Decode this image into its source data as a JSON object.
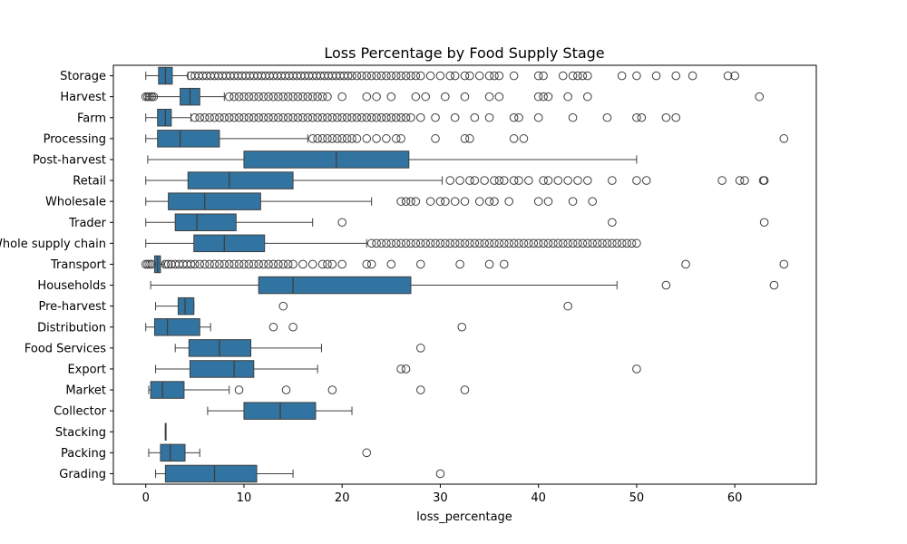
{
  "chart_data": {
    "type": "boxplot",
    "orientation": "horizontal",
    "title": "Loss Percentage by Food Supply Stage",
    "xlabel": "loss_percentage",
    "ylabel": "",
    "xlim": [
      -3.3,
      68.3
    ],
    "xticks": [
      "0",
      "10",
      "20",
      "30",
      "40",
      "50",
      "60"
    ],
    "xtick_values": [
      0,
      10,
      20,
      30,
      40,
      50,
      60
    ],
    "colors": {
      "box": "#3274a1",
      "line": "#3f3f3f",
      "outlier": "#3f3f3f"
    },
    "categories": [
      "Storage",
      "Harvest",
      "Farm",
      "Processing",
      "Post-harvest",
      "Retail",
      "Wholesale",
      "Trader",
      "Whole supply chain",
      "Transport",
      "Households",
      "Pre-harvest",
      "Distribution",
      "Food Services",
      "Export",
      "Market",
      "Collector",
      "Stacking",
      "Packing",
      "Grading"
    ],
    "series": [
      {
        "name": "Storage",
        "whislo": 0.0,
        "q1": 1.3,
        "med": 2.0,
        "q3": 2.7,
        "whishi": 4.3,
        "outliers": [
          4.6,
          5.0,
          5.4,
          5.8,
          6.2,
          6.6,
          7.0,
          7.4,
          7.8,
          8.2,
          8.6,
          9.0,
          9.4,
          9.8,
          10.2,
          10.6,
          11.0,
          11.4,
          11.8,
          12.2,
          12.6,
          13.0,
          13.4,
          13.8,
          14.2,
          14.6,
          15.0,
          15.4,
          15.8,
          16.2,
          16.6,
          17.0,
          17.4,
          17.8,
          18.2,
          18.6,
          19.0,
          19.4,
          19.8,
          20.2,
          20.6,
          21.0,
          21.5,
          22.0,
          22.5,
          23.0,
          23.5,
          24.0,
          24.5,
          25.0,
          25.5,
          26.0,
          26.5,
          27.0,
          27.5,
          28.0,
          29.0,
          30.0,
          31.0,
          31.5,
          32.5,
          33.0,
          34.0,
          35.0,
          35.5,
          36.0,
          37.5,
          40.0,
          40.5,
          42.5,
          43.5,
          44.0,
          44.5,
          45.0,
          48.5,
          50.0,
          52.0,
          54.0,
          55.7,
          59.3,
          60.0
        ]
      },
      {
        "name": "Harvest",
        "whislo": 0.0,
        "q1": 3.5,
        "med": 4.5,
        "q3": 5.5,
        "whishi": 8.0,
        "outliers": [
          0.0,
          0.2,
          0.4,
          0.6,
          0.8,
          8.5,
          9.0,
          9.5,
          10.0,
          10.5,
          11.0,
          11.5,
          12.0,
          12.5,
          13.0,
          13.5,
          14.0,
          14.5,
          15.0,
          15.5,
          16.0,
          16.5,
          17.0,
          17.5,
          18.0,
          18.5,
          20.0,
          22.5,
          23.5,
          25.0,
          27.5,
          28.5,
          30.5,
          32.5,
          35.0,
          36.0,
          40.0,
          40.5,
          41.0,
          43.0,
          45.0,
          62.5
        ]
      },
      {
        "name": "Farm",
        "whislo": 0.0,
        "q1": 1.2,
        "med": 2.0,
        "q3": 2.6,
        "whishi": 4.6,
        "outliers": [
          5.0,
          5.5,
          6.0,
          6.5,
          7.0,
          7.5,
          8.0,
          8.5,
          9.0,
          9.5,
          10.0,
          10.5,
          11.0,
          11.5,
          12.0,
          12.5,
          13.0,
          13.5,
          14.0,
          14.5,
          15.0,
          15.5,
          16.0,
          16.5,
          17.0,
          17.5,
          18.0,
          18.5,
          19.0,
          19.5,
          20.0,
          20.5,
          21.0,
          21.5,
          22.0,
          22.5,
          23.0,
          23.5,
          24.0,
          24.5,
          25.0,
          25.5,
          26.0,
          26.5,
          27.0,
          28.0,
          29.5,
          31.5,
          33.5,
          35.0,
          37.5,
          38.0,
          40.0,
          43.5,
          47.0,
          50.0,
          50.5,
          53.0,
          54.0
        ]
      },
      {
        "name": "Processing",
        "whislo": 0.0,
        "q1": 1.2,
        "med": 3.5,
        "q3": 7.5,
        "whishi": 16.5,
        "outliers": [
          17.0,
          17.5,
          18.0,
          18.5,
          19.0,
          19.5,
          20.0,
          20.5,
          21.0,
          21.5,
          22.5,
          23.5,
          24.5,
          25.5,
          26.0,
          29.5,
          32.5,
          33.0,
          37.5,
          38.5,
          65.0
        ]
      },
      {
        "name": "Post-harvest",
        "whislo": 0.2,
        "q1": 10.0,
        "med": 19.4,
        "q3": 26.8,
        "whishi": 50.0,
        "outliers": []
      },
      {
        "name": "Retail",
        "whislo": 0.0,
        "q1": 4.3,
        "med": 8.5,
        "q3": 15.0,
        "whishi": 30.2,
        "outliers": [
          31.0,
          32.0,
          33.0,
          33.5,
          34.5,
          35.5,
          36.0,
          36.5,
          37.5,
          38.0,
          39.0,
          40.5,
          41.0,
          42.0,
          43.0,
          44.0,
          45.0,
          47.5,
          50.0,
          51.0,
          58.7,
          60.5,
          61.0,
          62.9,
          63.0
        ]
      },
      {
        "name": "Wholesale",
        "whislo": 0.0,
        "q1": 2.3,
        "med": 6.0,
        "q3": 11.7,
        "whishi": 23.0,
        "outliers": [
          26.0,
          26.5,
          27.0,
          27.5,
          29.0,
          30.0,
          30.5,
          31.5,
          32.5,
          34.0,
          35.0,
          35.5,
          37.0,
          40.0,
          41.0,
          43.5,
          45.5
        ]
      },
      {
        "name": "Trader",
        "whislo": 0.0,
        "q1": 3.0,
        "med": 5.2,
        "q3": 9.2,
        "whishi": 17.0,
        "outliers": [
          20.0,
          47.5,
          63.0
        ]
      },
      {
        "name": "Whole supply chain",
        "whislo": 0.0,
        "q1": 4.9,
        "med": 8.0,
        "q3": 12.1,
        "whishi": 22.5,
        "outliers": [
          23.0,
          23.5,
          24.0,
          24.5,
          25.0,
          25.5,
          26.0,
          26.5,
          27.0,
          27.5,
          28.0,
          28.5,
          29.0,
          29.5,
          30.0,
          30.5,
          31.0,
          31.5,
          32.0,
          32.5,
          33.0,
          33.5,
          34.0,
          34.5,
          35.0,
          35.5,
          36.0,
          36.5,
          37.0,
          37.5,
          38.0,
          38.5,
          39.0,
          39.5,
          40.0,
          40.5,
          41.0,
          41.5,
          42.0,
          42.5,
          43.0,
          43.5,
          44.0,
          44.5,
          45.0,
          45.5,
          46.0,
          46.5,
          47.0,
          47.5,
          48.0,
          48.5,
          49.0,
          49.5,
          50.0
        ]
      },
      {
        "name": "Transport",
        "whislo": 0.9,
        "q1": 0.9,
        "med": 1.2,
        "q3": 1.5,
        "whishi": 1.8,
        "outliers": [
          0.0,
          0.2,
          0.4,
          0.6,
          2.0,
          2.3,
          2.6,
          3.0,
          3.4,
          3.8,
          4.2,
          4.6,
          5.0,
          5.5,
          6.0,
          6.5,
          7.0,
          7.5,
          8.0,
          8.5,
          9.0,
          9.5,
          10.0,
          10.5,
          11.0,
          11.5,
          12.0,
          12.5,
          13.0,
          13.5,
          14.0,
          14.5,
          15.0,
          16.0,
          17.0,
          18.0,
          18.5,
          19.0,
          20.0,
          22.5,
          23.0,
          25.0,
          28.0,
          32.0,
          35.0,
          36.5,
          55.0,
          65.0
        ]
      },
      {
        "name": "Households",
        "whislo": 0.5,
        "q1": 11.5,
        "med": 15.0,
        "q3": 27.0,
        "whishi": 48.0,
        "outliers": [
          53.0,
          64.0
        ]
      },
      {
        "name": "Pre-harvest",
        "whislo": 1.0,
        "q1": 3.3,
        "med": 4.0,
        "q3": 4.9,
        "whishi": 4.9,
        "outliers": [
          14.0,
          43.0
        ]
      },
      {
        "name": "Distribution",
        "whislo": 0.0,
        "q1": 0.9,
        "med": 2.2,
        "q3": 5.5,
        "whishi": 6.6,
        "outliers": [
          13.0,
          15.0,
          32.2
        ]
      },
      {
        "name": "Food Services",
        "whislo": 3.0,
        "q1": 4.4,
        "med": 7.5,
        "q3": 10.7,
        "whishi": 17.9,
        "outliers": [
          28.0
        ]
      },
      {
        "name": "Export",
        "whislo": 1.0,
        "q1": 4.5,
        "med": 9.0,
        "q3": 11.0,
        "whishi": 17.5,
        "outliers": [
          26.0,
          26.5,
          50.0
        ]
      },
      {
        "name": "Market",
        "whislo": 0.3,
        "q1": 0.5,
        "med": 1.7,
        "q3": 3.9,
        "whishi": 8.5,
        "outliers": [
          9.5,
          14.3,
          19.0,
          28.0,
          32.5
        ]
      },
      {
        "name": "Collector",
        "whislo": 6.3,
        "q1": 10.0,
        "med": 13.7,
        "q3": 17.3,
        "whishi": 21.0,
        "outliers": []
      },
      {
        "name": "Stacking",
        "whislo": 2.0,
        "q1": 2.0,
        "med": 2.0,
        "q3": 2.0,
        "whishi": 2.0,
        "outliers": []
      },
      {
        "name": "Packing",
        "whislo": 0.3,
        "q1": 1.5,
        "med": 2.5,
        "q3": 4.0,
        "whishi": 5.5,
        "outliers": [
          22.5
        ]
      },
      {
        "name": "Grading",
        "whislo": 1.0,
        "q1": 2.0,
        "med": 7.0,
        "q3": 11.3,
        "whishi": 15.0,
        "outliers": [
          30.0
        ]
      }
    ]
  }
}
